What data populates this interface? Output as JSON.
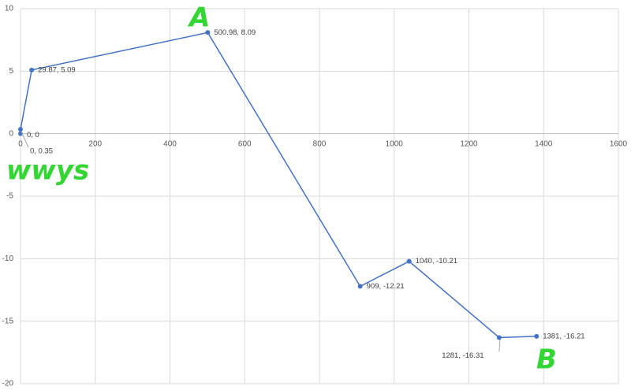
{
  "chart_data": {
    "type": "scatter-line",
    "series": [
      {
        "color": "#4472c4",
        "x": [
          0,
          0,
          29.87,
          500.98,
          909,
          1040,
          1281,
          1381
        ],
        "values": [
          0,
          0.35,
          5.09,
          8.09,
          -12.21,
          -10.21,
          -16.31,
          -16.21
        ],
        "value_labels": [
          "0, 0",
          "0, 0.35",
          "29.87, 5.09",
          "500.98, 8.09",
          "909, -12.21",
          "1040, -10.21",
          "1281, -16.31",
          "1381, -16.21"
        ]
      }
    ],
    "xlim": [
      0,
      1600
    ],
    "xticks": [
      0,
      200,
      400,
      600,
      800,
      1000,
      1200,
      1400,
      1600
    ],
    "ylim": [
      -20,
      10
    ],
    "yticks": [
      -20,
      -15,
      -10,
      -5,
      0,
      5,
      10
    ],
    "grid": true,
    "annotations": [
      "A",
      "wwys",
      "B"
    ],
    "annotation_color": "#33d633"
  }
}
